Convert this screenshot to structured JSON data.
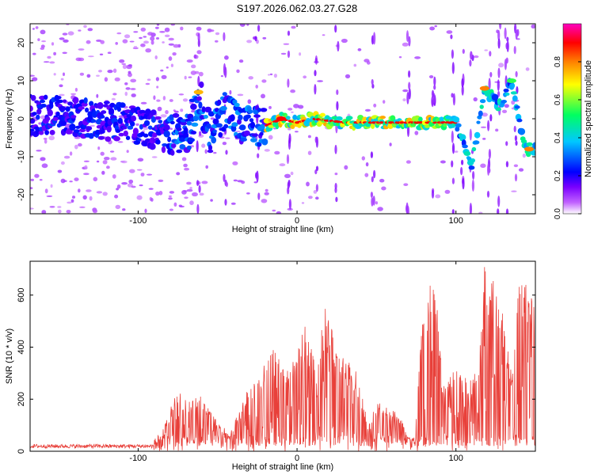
{
  "title": "S197.2026.062.03.27.G28",
  "colors": {
    "snr_line": "#e8403a",
    "frame": "#000000",
    "background": "#ffffff"
  },
  "chart_data": [
    {
      "type": "heatmap",
      "xlabel": "Height of straight line (km)",
      "ylabel": "Frequency (Hz)",
      "xlim": [
        -168,
        150
      ],
      "ylim": [
        -25,
        25
      ],
      "xticks": [
        -100,
        0,
        100
      ],
      "xtick_labels": [
        "-100",
        "0",
        "100"
      ],
      "yticks": [
        -20,
        -10,
        0,
        10,
        20
      ],
      "ytick_labels": [
        "-20",
        "-10",
        "0",
        "10",
        "20"
      ],
      "colorbar": {
        "label": "Normalized spectral amplitude",
        "range": [
          0,
          1
        ],
        "ticks": [
          0.0,
          0.2,
          0.4,
          0.6,
          0.8
        ],
        "tick_labels": [
          "0.0",
          "0.2",
          "0.4",
          "0.6",
          "0.8"
        ],
        "colormap": [
          "#ffffff",
          "#7a00ff",
          "#0000ff",
          "#00c8ff",
          "#00ff60",
          "#ffff00",
          "#ff8000",
          "#ff0000",
          "#ff00c0"
        ]
      },
      "ridge_track": [
        {
          "x": -168,
          "y": 1
        },
        {
          "x": -150,
          "y": 1
        },
        {
          "x": -130,
          "y": 0
        },
        {
          "x": -110,
          "y": -1
        },
        {
          "x": -95,
          "y": -2
        },
        {
          "x": -80,
          "y": -4
        },
        {
          "x": -68,
          "y": -4
        },
        {
          "x": -62,
          "y": 7
        },
        {
          "x": -55,
          "y": -4
        },
        {
          "x": -45,
          "y": 3
        },
        {
          "x": -35,
          "y": -2
        },
        {
          "x": -20,
          "y": -2
        },
        {
          "x": -10,
          "y": 0
        },
        {
          "x": 0,
          "y": -1
        },
        {
          "x": 10,
          "y": 0
        },
        {
          "x": 30,
          "y": -1
        },
        {
          "x": 60,
          "y": -1
        },
        {
          "x": 85,
          "y": -1
        },
        {
          "x": 100,
          "y": -1
        },
        {
          "x": 110,
          "y": -12
        },
        {
          "x": 118,
          "y": 8
        },
        {
          "x": 128,
          "y": 3
        },
        {
          "x": 135,
          "y": 10
        },
        {
          "x": 140,
          "y": -1
        },
        {
          "x": 145,
          "y": -8
        },
        {
          "x": 150,
          "y": -8
        }
      ]
    },
    {
      "type": "line",
      "xlabel": "Height of straight line (km)",
      "ylabel": "SNR (10 * v/v)",
      "xlim": [
        -168,
        150
      ],
      "ylim": [
        0,
        730
      ],
      "xticks": [
        -100,
        0,
        100
      ],
      "xtick_labels": [
        "-100",
        "0",
        "100"
      ],
      "yticks": [
        0,
        200,
        400,
        600
      ],
      "ytick_labels": [
        "0",
        "200",
        "400",
        "600"
      ],
      "series": [
        {
          "name": "SNR",
          "envelope": [
            {
              "x": -168,
              "y": 20
            },
            {
              "x": -100,
              "y": 25
            },
            {
              "x": -88,
              "y": 40
            },
            {
              "x": -80,
              "y": 160
            },
            {
              "x": -75,
              "y": 240
            },
            {
              "x": -68,
              "y": 200
            },
            {
              "x": -60,
              "y": 220
            },
            {
              "x": -50,
              "y": 110
            },
            {
              "x": -42,
              "y": 70
            },
            {
              "x": -30,
              "y": 260
            },
            {
              "x": -20,
              "y": 360
            },
            {
              "x": -12,
              "y": 420
            },
            {
              "x": -5,
              "y": 300
            },
            {
              "x": 5,
              "y": 480
            },
            {
              "x": 12,
              "y": 340
            },
            {
              "x": 18,
              "y": 560
            },
            {
              "x": 28,
              "y": 380
            },
            {
              "x": 38,
              "y": 300
            },
            {
              "x": 45,
              "y": 100
            },
            {
              "x": 52,
              "y": 220
            },
            {
              "x": 58,
              "y": 150
            },
            {
              "x": 63,
              "y": 160
            },
            {
              "x": 70,
              "y": 60
            },
            {
              "x": 74,
              "y": 50
            },
            {
              "x": 77,
              "y": 380
            },
            {
              "x": 82,
              "y": 660
            },
            {
              "x": 86,
              "y": 720
            },
            {
              "x": 92,
              "y": 260
            },
            {
              "x": 100,
              "y": 330
            },
            {
              "x": 108,
              "y": 270
            },
            {
              "x": 114,
              "y": 320
            },
            {
              "x": 118,
              "y": 720
            },
            {
              "x": 124,
              "y": 710
            },
            {
              "x": 130,
              "y": 560
            },
            {
              "x": 135,
              "y": 300
            },
            {
              "x": 140,
              "y": 680
            },
            {
              "x": 145,
              "y": 650
            },
            {
              "x": 150,
              "y": 640
            }
          ]
        }
      ]
    }
  ]
}
